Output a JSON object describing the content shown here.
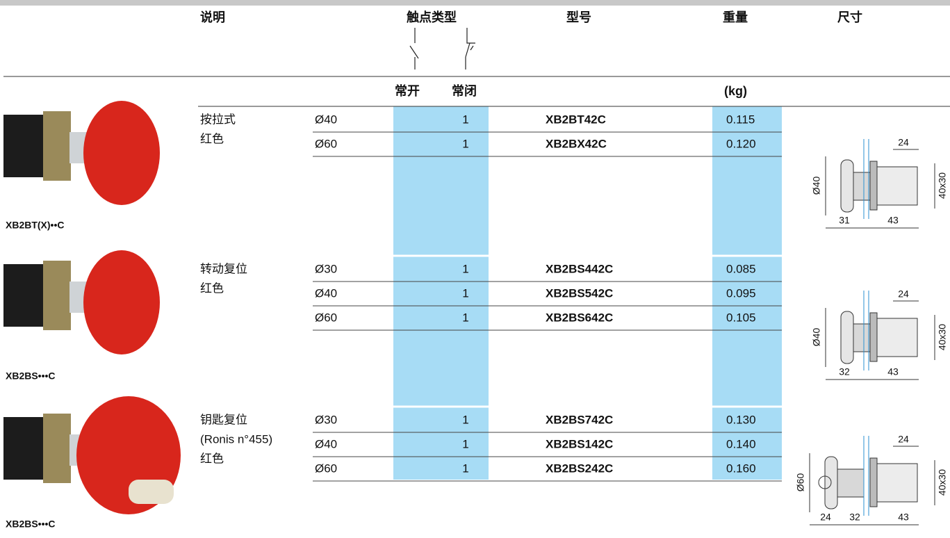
{
  "header": {
    "description": "说明",
    "contact_type": "触点类型",
    "model": "型号",
    "weight": "重量",
    "dimensions": "尺寸",
    "normally_open": "常开",
    "normally_closed": "常闭",
    "weight_unit": "(kg)"
  },
  "groups": [
    {
      "image_label": "XB2BT(X)••C",
      "description": [
        "按拉式",
        "红色"
      ],
      "rows": [
        {
          "size": "Ø40",
          "nc": "1",
          "model": "XB2BT42C",
          "weight": "0.115"
        },
        {
          "size": "Ø60",
          "nc": "1",
          "model": "XB2BX42C",
          "weight": "0.120"
        }
      ],
      "dimensions": {
        "top": "24",
        "side": "40x30",
        "diameter": "Ø40",
        "bottom": [
          "31",
          "43"
        ]
      }
    },
    {
      "image_label": "XB2BS•••C",
      "description": [
        "转动复位",
        "红色"
      ],
      "rows": [
        {
          "size": "Ø30",
          "nc": "1",
          "model": "XB2BS442C",
          "weight": "0.085"
        },
        {
          "size": "Ø40",
          "nc": "1",
          "model": "XB2BS542C",
          "weight": "0.095"
        },
        {
          "size": "Ø60",
          "nc": "1",
          "model": "XB2BS642C",
          "weight": "0.105"
        }
      ],
      "dimensions": {
        "top": "24",
        "side": "40x30",
        "diameter": "Ø40",
        "bottom": [
          "32",
          "43"
        ]
      }
    },
    {
      "image_label": "XB2BS•••C",
      "description": [
        "钥匙复位",
        "(Ronis n°455)",
        "红色"
      ],
      "rows": [
        {
          "size": "Ø30",
          "nc": "1",
          "model": "XB2BS742C",
          "weight": "0.130"
        },
        {
          "size": "Ø40",
          "nc": "1",
          "model": "XB2BS142C",
          "weight": "0.140"
        },
        {
          "size": "Ø60",
          "nc": "1",
          "model": "XB2BS242C",
          "weight": "0.160"
        }
      ],
      "dimensions": {
        "top": "24",
        "side": "40x30",
        "diameter": "Ø60",
        "bottom": [
          "24",
          "32",
          "43"
        ]
      }
    }
  ]
}
